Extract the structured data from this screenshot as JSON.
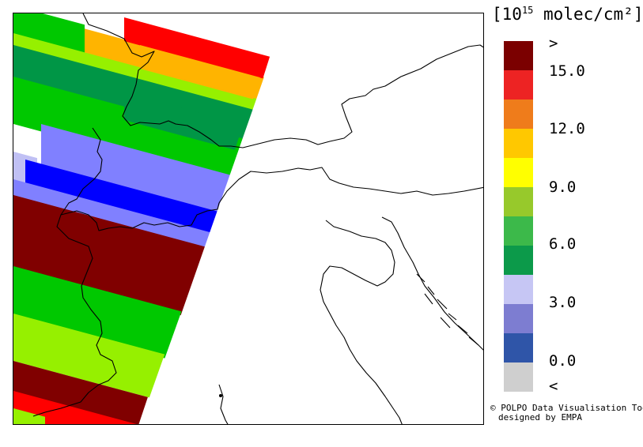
{
  "legend": {
    "unit_prefix": "[10",
    "unit_exp": "15",
    "unit_suffix": " molec/cm²]",
    "labels": [
      ">",
      "15.0",
      "12.0",
      "9.0",
      "6.0",
      "3.0",
      "0.0",
      "<"
    ],
    "colors": [
      "#7b0000",
      "#ed2323",
      "#ef7c1b",
      "#ffc800",
      "#ffff00",
      "#97c92b",
      "#3cb94a",
      "#0c9a4a",
      "#c6c6f4",
      "#7d7dd1",
      "#2f55a8",
      "#cfcfcf"
    ]
  },
  "credit": {
    "line1": "© POLPO Data Visualisation Tool",
    "line2": "designed by EMPA"
  },
  "map": {
    "swath_colors": {
      "red": "#ff0000",
      "orange": "#ffb400",
      "lightgreen": "#96f000",
      "green": "#00c800",
      "darkgreen": "#009646",
      "lightblue": "#8080ff",
      "blue": "#0000ff",
      "paleblue": "#c0c0f4",
      "maroon": "#800000"
    }
  }
}
